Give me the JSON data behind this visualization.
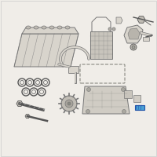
{
  "bg_color": "#f0ede8",
  "line_color": "#888888",
  "dark_color": "#555555",
  "highlight_color": "#4a9fd4",
  "part_fill": "#d8d4cc",
  "part_edge": "#777777",
  "bump_color": "#c0bcb4",
  "inner_color": "#b8b4ac",
  "pan_color": "#d0ccc4",
  "grid_color": "#c8c4bc",
  "bolt_fill": "#c0bcb4",
  "screw_fill": "#b0aca4",
  "blue_edge": "#2255aa",
  "figsize": [
    2.0,
    2.0
  ],
  "dpi": 100
}
